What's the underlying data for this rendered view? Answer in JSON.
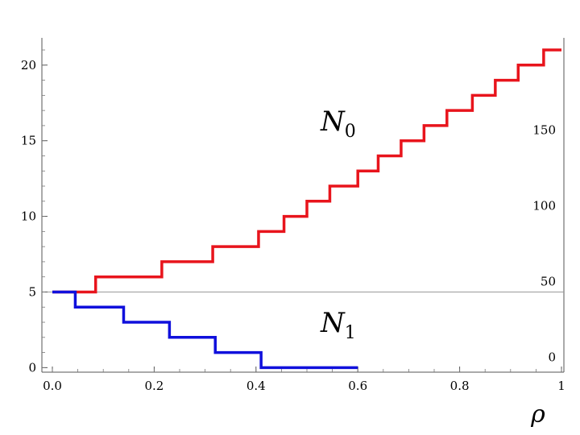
{
  "chart_data": {
    "type": "line",
    "step": true,
    "title": "",
    "xlabel": "ρ",
    "ylabel": "",
    "xlim": [
      0,
      1
    ],
    "ylim": [
      -0.3,
      21.8
    ],
    "x_ticks": [
      "0.0",
      "0.2",
      "0.4",
      "0.6",
      "0.8",
      "1"
    ],
    "x_tick_values": [
      0,
      0.2,
      0.4,
      0.6,
      0.8,
      1.0
    ],
    "y_ticks": [
      "0",
      "5",
      "10",
      "15",
      "20"
    ],
    "y_tick_values": [
      0,
      5,
      10,
      15,
      20
    ],
    "right_axis_labels": [
      "0",
      "50",
      "100",
      "150"
    ],
    "right_axis_label_positions": [
      0,
      5,
      10,
      15
    ],
    "reference_line_y": 5,
    "grid": false,
    "legend": "none",
    "series": [
      {
        "name": "N",
        "subscript": "0",
        "color": "#e8141c",
        "label_position": [
          0.92,
          16
        ],
        "points": [
          [
            0.0,
            5
          ],
          [
            0.085,
            6
          ],
          [
            0.215,
            7
          ],
          [
            0.315,
            8
          ],
          [
            0.405,
            9
          ],
          [
            0.455,
            10
          ],
          [
            0.5,
            11
          ],
          [
            0.545,
            12
          ],
          [
            0.6,
            13
          ],
          [
            0.64,
            14
          ],
          [
            0.685,
            15
          ],
          [
            0.73,
            16
          ],
          [
            0.775,
            17
          ],
          [
            0.825,
            18
          ],
          [
            0.87,
            19
          ],
          [
            0.915,
            20
          ],
          [
            0.965,
            21
          ]
        ],
        "x_end": 1.0
      },
      {
        "name": "N",
        "subscript": "1",
        "color": "#1010dc",
        "label_position": [
          0.92,
          2.5
        ],
        "points": [
          [
            0.0,
            5
          ],
          [
            0.045,
            4
          ],
          [
            0.14,
            3
          ],
          [
            0.23,
            2
          ],
          [
            0.32,
            1
          ],
          [
            0.41,
            0
          ]
        ],
        "x_end": 0.6
      }
    ]
  }
}
